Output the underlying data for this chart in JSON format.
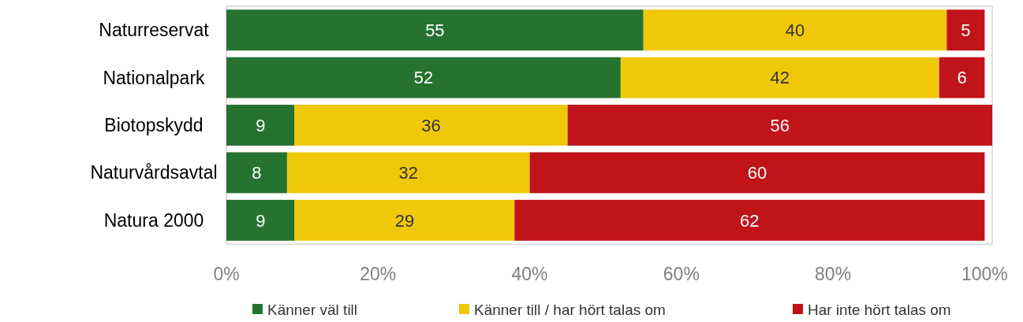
{
  "chart_data": {
    "type": "bar",
    "orientation": "horizontal",
    "stacked": true,
    "categories": [
      "Naturreservat",
      "Nationalpark",
      "Biotopskydd",
      "Naturvårdsavtal",
      "Natura 2000"
    ],
    "series": [
      {
        "name": "Känner väl till",
        "color": "#267330",
        "values": [
          55,
          52,
          9,
          8,
          9
        ]
      },
      {
        "name": "Känner till / har hört talas om",
        "color": "#f0c80a",
        "values": [
          40,
          42,
          36,
          32,
          29
        ]
      },
      {
        "name": "Har inte hört talas om",
        "color": "#c0141a",
        "values": [
          5,
          6,
          56,
          60,
          62
        ]
      }
    ],
    "xlim": [
      0,
      101
    ],
    "xticks": [
      {
        "value": 0,
        "label": "0%"
      },
      {
        "value": 20,
        "label": "20%"
      },
      {
        "value": 40,
        "label": "40%"
      },
      {
        "value": 60,
        "label": "60%"
      },
      {
        "value": 80,
        "label": "80%"
      },
      {
        "value": 100,
        "label": "100%"
      }
    ],
    "data_labels": true,
    "legend": "bottom",
    "grid": false
  }
}
